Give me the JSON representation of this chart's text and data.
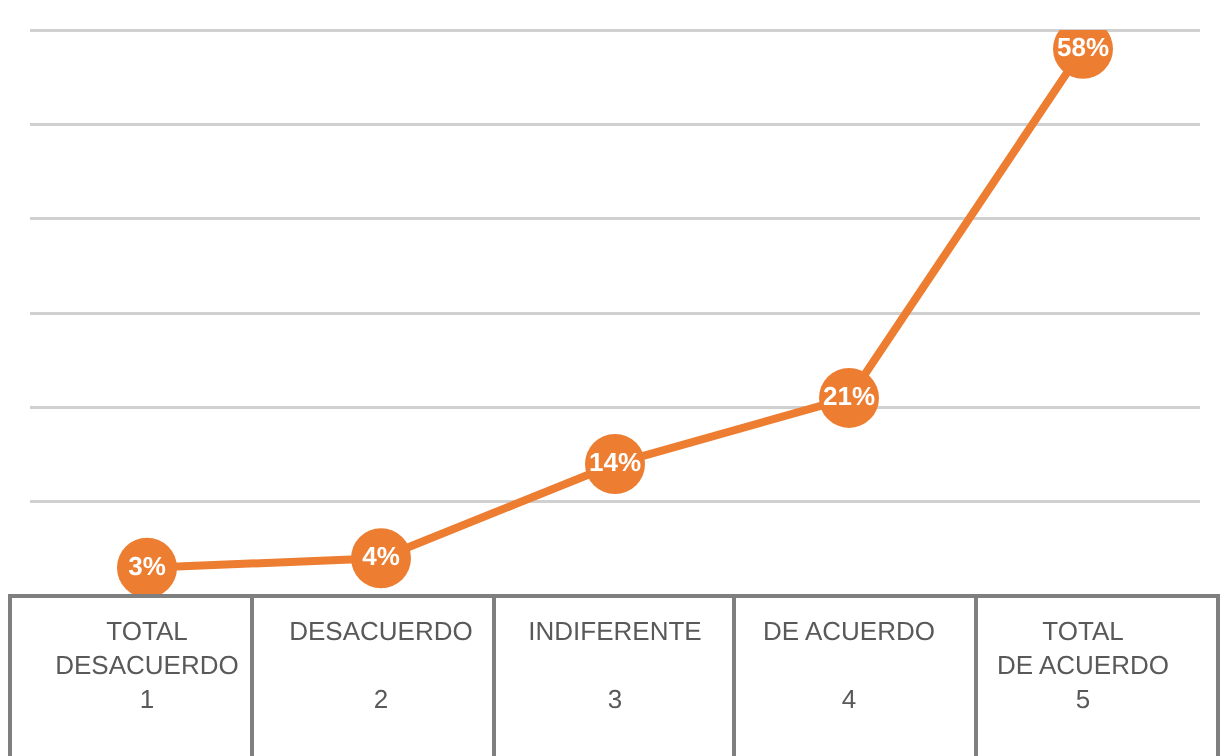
{
  "chart_data": {
    "type": "line",
    "categories": [
      "TOTAL DESACUERDO\n1",
      "DESACUERDO\n2",
      "INDIFERENTE\n3",
      "DE ACUERDO\n4",
      "TOTAL DE ACUERDO\n5"
    ],
    "series": [
      {
        "color": "#ed7d31",
        "values": [
          3,
          4,
          14,
          21,
          58
        ],
        "value_labels": [
          "3%",
          "4%",
          "14%",
          "21%",
          "58%"
        ]
      }
    ],
    "ylim": [
      0,
      60
    ],
    "yticks": [
      {
        "value": 0,
        "label": null
      },
      {
        "value": 10,
        "label": null
      },
      {
        "value": 20,
        "label": null
      },
      {
        "value": 30,
        "label": null
      },
      {
        "value": 40,
        "label": null
      },
      {
        "value": 50,
        "label": null
      },
      {
        "value": 60,
        "label": null
      }
    ],
    "grid": "y",
    "legend": false,
    "tick_labels": "x",
    "marker": "circle",
    "line_style": "solid"
  }
}
